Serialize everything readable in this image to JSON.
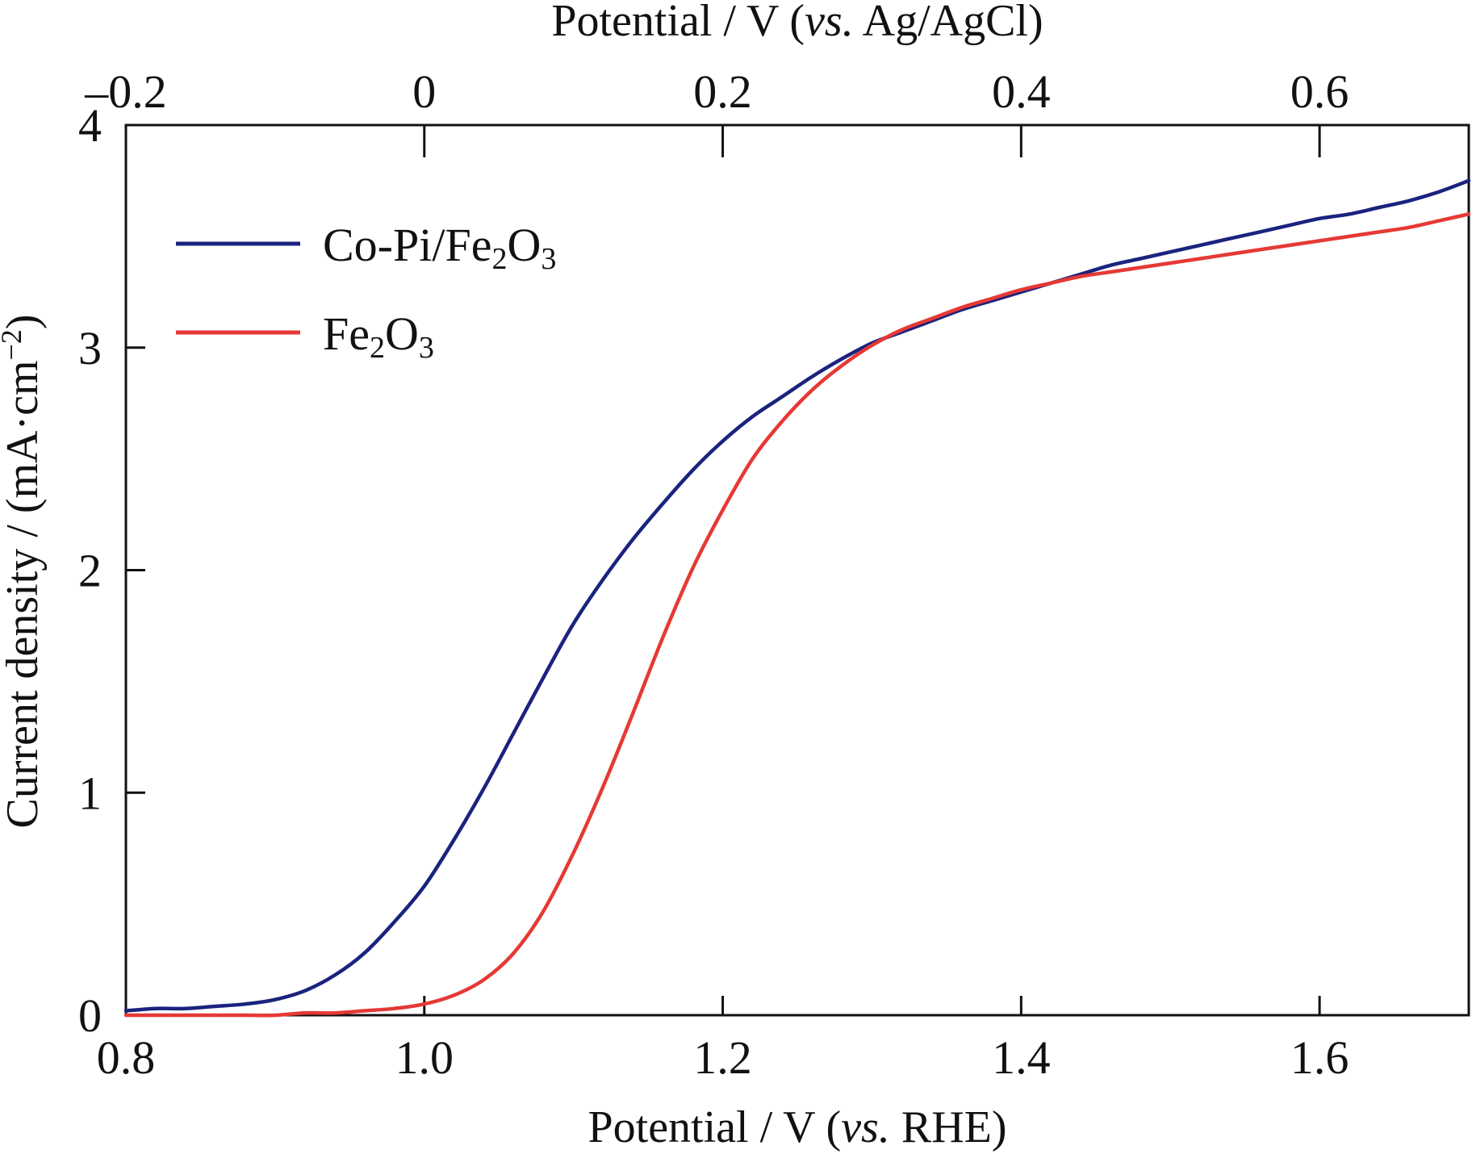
{
  "chart_data": {
    "type": "line",
    "title": "",
    "xlabel": "Potential / V (vs. RHE)",
    "xlabel_parts": {
      "pre": "Potential / V (",
      "italic": "vs.",
      "post": " RHE)"
    },
    "x2label": "Potential / V (vs. Ag/AgCl)",
    "x2label_parts": {
      "pre": "Potential / V (",
      "italic": "vs.",
      "post": " Ag/AgCl)"
    },
    "ylabel": "Current density / (mA·cm−2)",
    "ylabel_parts": {
      "pre": "Current density / (mA·cm",
      "sup": "−2",
      "post": ")"
    },
    "xlim": [
      0.8,
      1.7
    ],
    "ylim": [
      0,
      4
    ],
    "x_ticks": [
      0.8,
      1.0,
      1.2,
      1.4,
      1.6
    ],
    "x_tick_labels": [
      "0.8",
      "1.0",
      "1.2",
      "1.4",
      "1.6"
    ],
    "y_ticks": [
      0,
      1,
      2,
      3,
      4
    ],
    "y_tick_labels": [
      "0",
      "1",
      "2",
      "3",
      "4"
    ],
    "x2_ticks": [
      -0.2,
      0,
      0.2,
      0.4,
      0.6
    ],
    "x2_tick_labels": [
      "–0.2",
      "0",
      "0.2",
      "0.4",
      "0.6"
    ],
    "x2_offset": 1.0,
    "grid": false,
    "legend_position": "top-left",
    "series": [
      {
        "name": "Co-Pi/Fe2O3",
        "legend_parts": {
          "pre": "Co-Pi/Fe",
          "sub1": "2",
          "mid": "O",
          "sub2": "3"
        },
        "color": "#1a237e",
        "x": [
          0.8,
          0.82,
          0.84,
          0.86,
          0.88,
          0.9,
          0.92,
          0.94,
          0.96,
          0.98,
          1.0,
          1.02,
          1.04,
          1.06,
          1.08,
          1.1,
          1.12,
          1.14,
          1.16,
          1.18,
          1.2,
          1.22,
          1.24,
          1.26,
          1.28,
          1.3,
          1.32,
          1.34,
          1.36,
          1.38,
          1.4,
          1.42,
          1.44,
          1.46,
          1.48,
          1.5,
          1.52,
          1.54,
          1.56,
          1.58,
          1.6,
          1.62,
          1.64,
          1.66,
          1.68,
          1.7
        ],
        "y": [
          0.02,
          0.03,
          0.03,
          0.04,
          0.05,
          0.07,
          0.11,
          0.18,
          0.28,
          0.42,
          0.58,
          0.79,
          1.02,
          1.27,
          1.52,
          1.76,
          1.96,
          2.14,
          2.3,
          2.45,
          2.58,
          2.69,
          2.78,
          2.87,
          2.95,
          3.02,
          3.07,
          3.12,
          3.17,
          3.21,
          3.25,
          3.29,
          3.33,
          3.37,
          3.4,
          3.43,
          3.46,
          3.49,
          3.52,
          3.55,
          3.58,
          3.6,
          3.63,
          3.66,
          3.7,
          3.75
        ]
      },
      {
        "name": "Fe2O3",
        "legend_parts": {
          "pre": "Fe",
          "sub1": "2",
          "mid": "O",
          "sub2": "3"
        },
        "color": "#e53935",
        "x": [
          0.8,
          0.82,
          0.84,
          0.86,
          0.88,
          0.9,
          0.92,
          0.94,
          0.96,
          0.98,
          1.0,
          1.02,
          1.04,
          1.06,
          1.08,
          1.1,
          1.12,
          1.14,
          1.16,
          1.18,
          1.2,
          1.22,
          1.24,
          1.26,
          1.28,
          1.3,
          1.32,
          1.34,
          1.36,
          1.38,
          1.4,
          1.42,
          1.44,
          1.46,
          1.48,
          1.5,
          1.52,
          1.54,
          1.56,
          1.58,
          1.6,
          1.62,
          1.64,
          1.66,
          1.68,
          1.7
        ],
        "y": [
          0.0,
          0.0,
          0.0,
          0.0,
          0.0,
          0.0,
          0.01,
          0.01,
          0.02,
          0.03,
          0.05,
          0.09,
          0.16,
          0.28,
          0.47,
          0.73,
          1.03,
          1.36,
          1.7,
          2.01,
          2.27,
          2.5,
          2.67,
          2.81,
          2.92,
          3.01,
          3.08,
          3.13,
          3.18,
          3.22,
          3.26,
          3.29,
          3.32,
          3.34,
          3.36,
          3.38,
          3.4,
          3.42,
          3.44,
          3.46,
          3.48,
          3.5,
          3.52,
          3.54,
          3.57,
          3.6
        ]
      }
    ]
  }
}
